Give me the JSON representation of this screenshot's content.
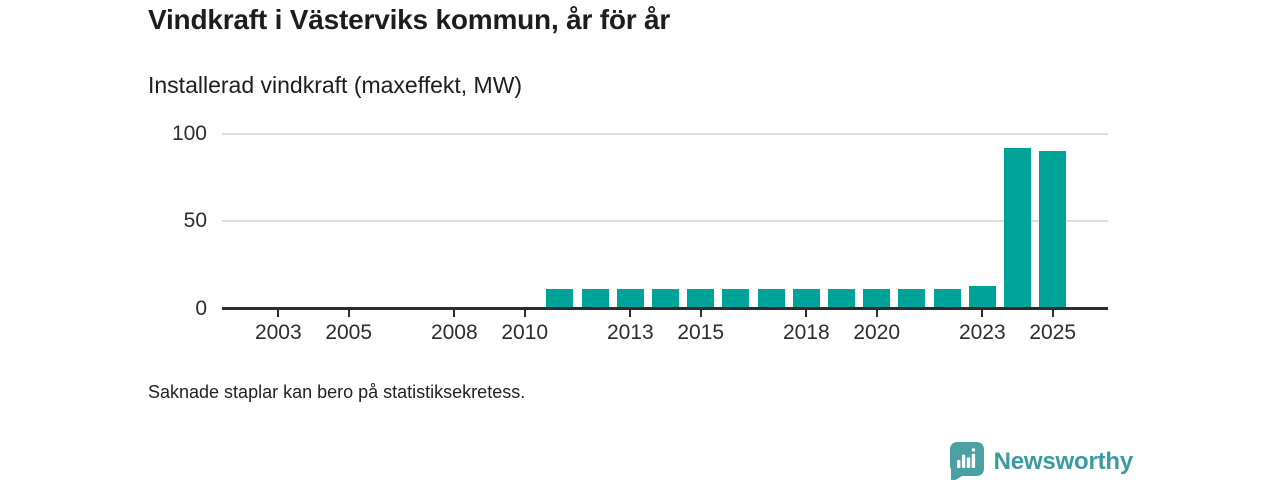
{
  "header": {
    "title": "Vindkraft i Västerviks kommun, år för år",
    "subtitle": "Installerad vindkraft (maxeffekt, MW)"
  },
  "footer": {
    "note": "Saknade staplar kan bero på statistiksekretess.",
    "brand": "Newsworthy"
  },
  "colors": {
    "bar": "#00a398",
    "axis": "#2d2d2d",
    "gridline": "#dedede",
    "tick_label": "#2d2d2d",
    "logo_bubble": "#4ba0a3",
    "brand_text": "#3b9a9e"
  },
  "chart_data": {
    "type": "bar",
    "title": "Vindkraft i Västerviks kommun, år för år",
    "subtitle": "Installerad vindkraft (maxeffekt, MW)",
    "xlabel": "",
    "ylabel": "Installerad vindkraft (maxeffekt, MW)",
    "ylim": [
      0,
      100
    ],
    "y_ticks": [
      0,
      50,
      100
    ],
    "x_axis_year_range": [
      2002,
      2026
    ],
    "x_tick_labels": [
      2003,
      2005,
      2008,
      2010,
      2013,
      2015,
      2018,
      2020,
      2023,
      2025
    ],
    "grid": "horizontal-only",
    "legend_position": "none",
    "years": [
      2011,
      2012,
      2013,
      2014,
      2015,
      2016,
      2017,
      2018,
      2019,
      2020,
      2021,
      2022,
      2023,
      2024,
      2025
    ],
    "values": [
      11,
      11,
      11,
      11,
      11,
      11,
      11,
      11,
      11,
      11,
      11,
      11,
      13,
      92,
      90
    ],
    "note": "Saknade staplar kan bero på statistiksekretess."
  }
}
